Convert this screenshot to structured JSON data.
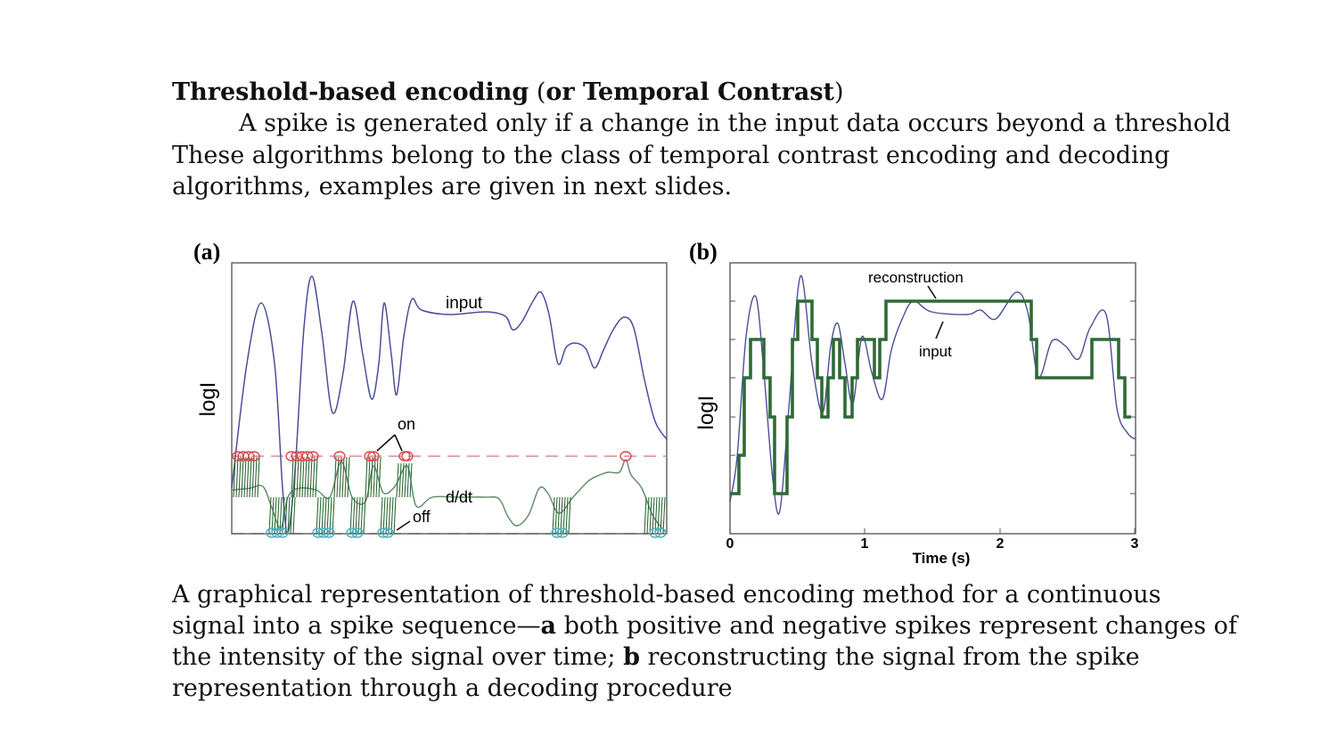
{
  "heading": {
    "bold_part": "Threshold-based encoding",
    "paren_open": " (",
    "bold_part2": "or Temporal Contrast",
    "paren_close": ")"
  },
  "intro": {
    "line1": "A spike is generated only if a change in the input data occurs beyond a threshold",
    "line2": "These algorithms belong to the class of temporal contrast encoding and decoding",
    "line3": "algorithms, examples are given in next slides."
  },
  "figure": {
    "panel_a": {
      "label": "(a)",
      "ylabel": "logI",
      "annotations": {
        "input": "input",
        "on": "on",
        "ddt": "d/dt",
        "off": "off"
      }
    },
    "panel_b": {
      "label": "(b)",
      "ylabel": "logI",
      "xlabel": "Time (s)",
      "ticks": [
        "0",
        "1",
        "2",
        "3"
      ],
      "annotations": {
        "reconstruction": "reconstruction",
        "input": "input"
      }
    },
    "colors": {
      "input_line": "#4b4f9a",
      "ddt_line": "#4a8a55",
      "reconstruction": "#2f6a36",
      "on_marker": "#d94a4a",
      "off_marker": "#4fb3c4",
      "on_threshold": "#d88a9a",
      "off_threshold": "#6a6a6a"
    }
  },
  "caption": {
    "line1": "A graphical representation of threshold-based encoding method for a continuous",
    "line2_pre": "signal into a spike sequence—",
    "line2_bold": "a",
    "line2_post": " both positive and negative spikes represent changes of",
    "line3_pre": "the intensity of the signal over time; ",
    "line3_bold": "b",
    "line3_post": " reconstructing the signal from the spike",
    "line4": "representation through a decoding procedure"
  }
}
